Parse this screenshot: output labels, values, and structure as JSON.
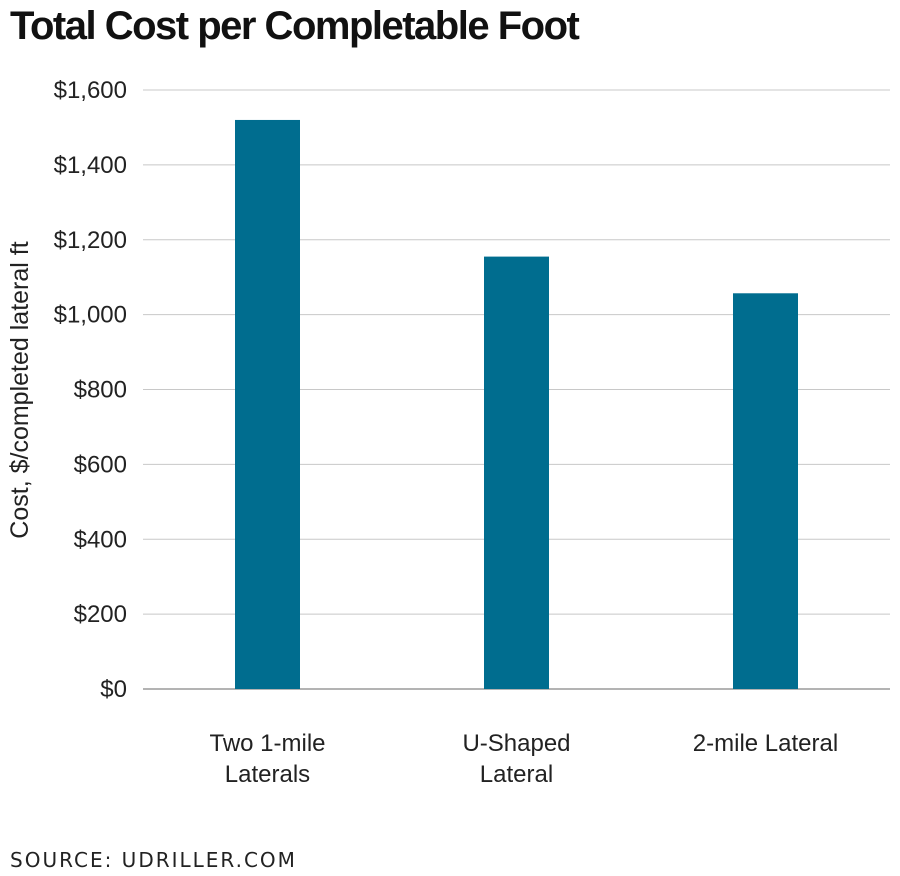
{
  "source": "SOURCE: UDRILLER.COM",
  "chart_data": {
    "type": "bar",
    "title": "Total Cost per Completable Foot",
    "ylabel": "Cost, $/completed lateral ft",
    "xlabel": "",
    "categories": [
      [
        "Two 1-mile",
        "Laterals"
      ],
      [
        "U-Shaped",
        "Lateral"
      ],
      [
        "2-mile Lateral"
      ]
    ],
    "values": [
      1520,
      1155,
      1057
    ],
    "ylim": [
      0,
      1600
    ],
    "yticks": [
      0,
      200,
      400,
      600,
      800,
      1000,
      1200,
      1400,
      1600
    ],
    "ytick_labels": [
      "$0",
      "$200",
      "$400",
      "$600",
      "$800",
      "$1,000",
      "$1,200",
      "$1,400",
      "$1,600"
    ],
    "grid": true,
    "bar_color": "#006D8F",
    "grid_color": "#c8c8c8"
  }
}
